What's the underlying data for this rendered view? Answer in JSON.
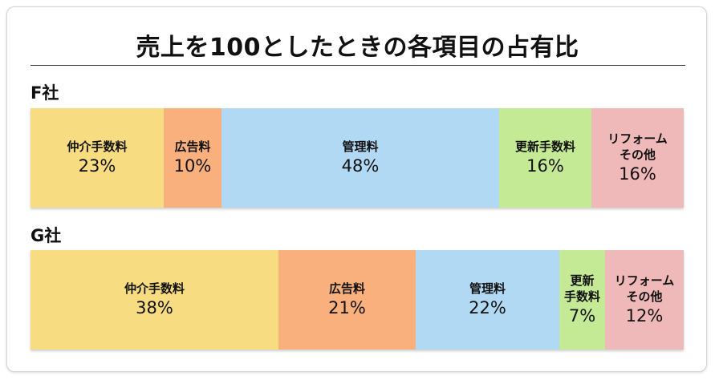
{
  "title": "売上を100としたときの各項目の占有比",
  "colors": {
    "仲介手数料": "#f8dc82",
    "広告料": "#f9b07c",
    "管理料": "#b2d9f4",
    "更新手数料": "#c5ea95",
    "リフォームその他": "#f0b9b9"
  },
  "chart_data": [
    {
      "type": "bar",
      "stacked": true,
      "orientation": "horizontal",
      "title": "F社",
      "categories": [
        "仲介手数料",
        "広告料",
        "管理料",
        "更新手数料",
        "リフォームその他"
      ],
      "display_labels": [
        "仲介手数料",
        "広告料",
        "管理料",
        "更新手数料",
        "リフォーム\nその他"
      ],
      "values": [
        23,
        10,
        48,
        16,
        16
      ],
      "value_labels": [
        "23%",
        "10%",
        "48%",
        "16%",
        "16%"
      ]
    },
    {
      "type": "bar",
      "stacked": true,
      "orientation": "horizontal",
      "title": "G社",
      "categories": [
        "仲介手数料",
        "広告料",
        "管理料",
        "更新手数料",
        "リフォームその他"
      ],
      "display_labels": [
        "仲介手数料",
        "広告料",
        "管理料",
        "更新\n手数料",
        "リフォーム\nその他"
      ],
      "values": [
        38,
        21,
        22,
        7,
        12
      ],
      "value_labels": [
        "38%",
        "21%",
        "22%",
        "7%",
        "12%"
      ]
    }
  ]
}
